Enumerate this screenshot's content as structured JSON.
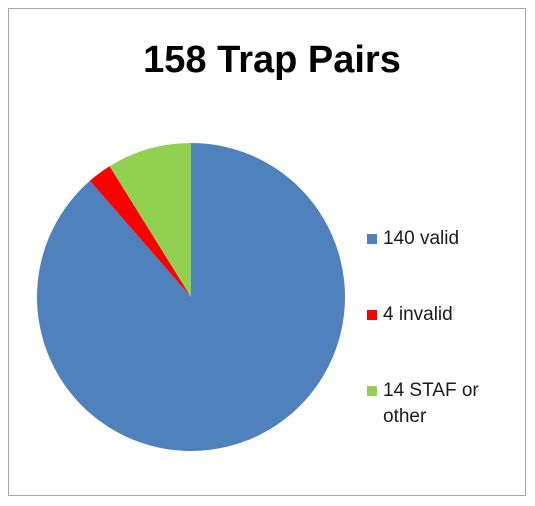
{
  "chart_data": {
    "type": "pie",
    "title": "158 Trap Pairs",
    "categories": [
      "140 valid",
      "4 invalid",
      "14 STAF or other"
    ],
    "values": [
      140,
      4,
      14
    ],
    "colors": [
      "#4f81bd",
      "#ff0000",
      "#92d050"
    ],
    "legend": "right"
  }
}
